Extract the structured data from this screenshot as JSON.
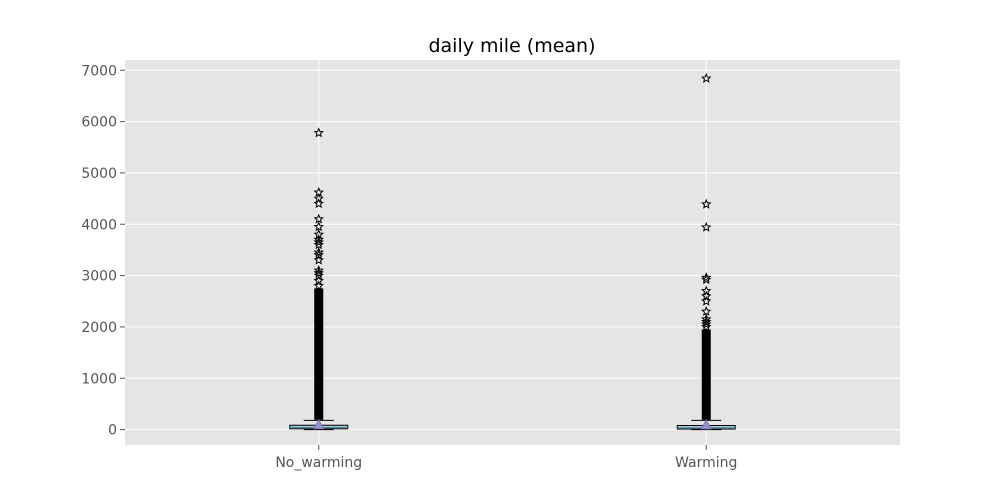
{
  "chart_data": {
    "type": "boxplot",
    "title": "daily mile (mean)",
    "xlabel": "",
    "ylabel": "",
    "ylim": [
      -300,
      7200
    ],
    "yticks": [
      0,
      1000,
      2000,
      3000,
      4000,
      5000,
      6000,
      7000
    ],
    "grid": true,
    "background_color": "#e5e5e5",
    "box_color": "#a9c5e0",
    "mean_marker_color": "#9b8fd0",
    "categories": [
      "No_warming",
      "Warming"
    ],
    "boxes": [
      {
        "category": "No_warming",
        "whisker_low": 0,
        "q1": 15,
        "median": 40,
        "q3": 85,
        "whisker_high": 180,
        "mean": 95,
        "outlier_band": [
          190,
          2750
        ],
        "outliers": [
          2800,
          2900,
          3000,
          3050,
          3100,
          3300,
          3400,
          3450,
          3600,
          3650,
          3700,
          3800,
          3950,
          4100,
          4400,
          4500,
          4620,
          5780
        ]
      },
      {
        "category": "Warming",
        "whisker_low": 0,
        "q1": 10,
        "median": 35,
        "q3": 80,
        "whisker_high": 180,
        "mean": 90,
        "outlier_band": [
          190,
          1950
        ],
        "outliers": [
          2000,
          2050,
          2100,
          2150,
          2300,
          2500,
          2600,
          2700,
          2920,
          2960,
          3940,
          4390,
          6840
        ]
      }
    ]
  }
}
